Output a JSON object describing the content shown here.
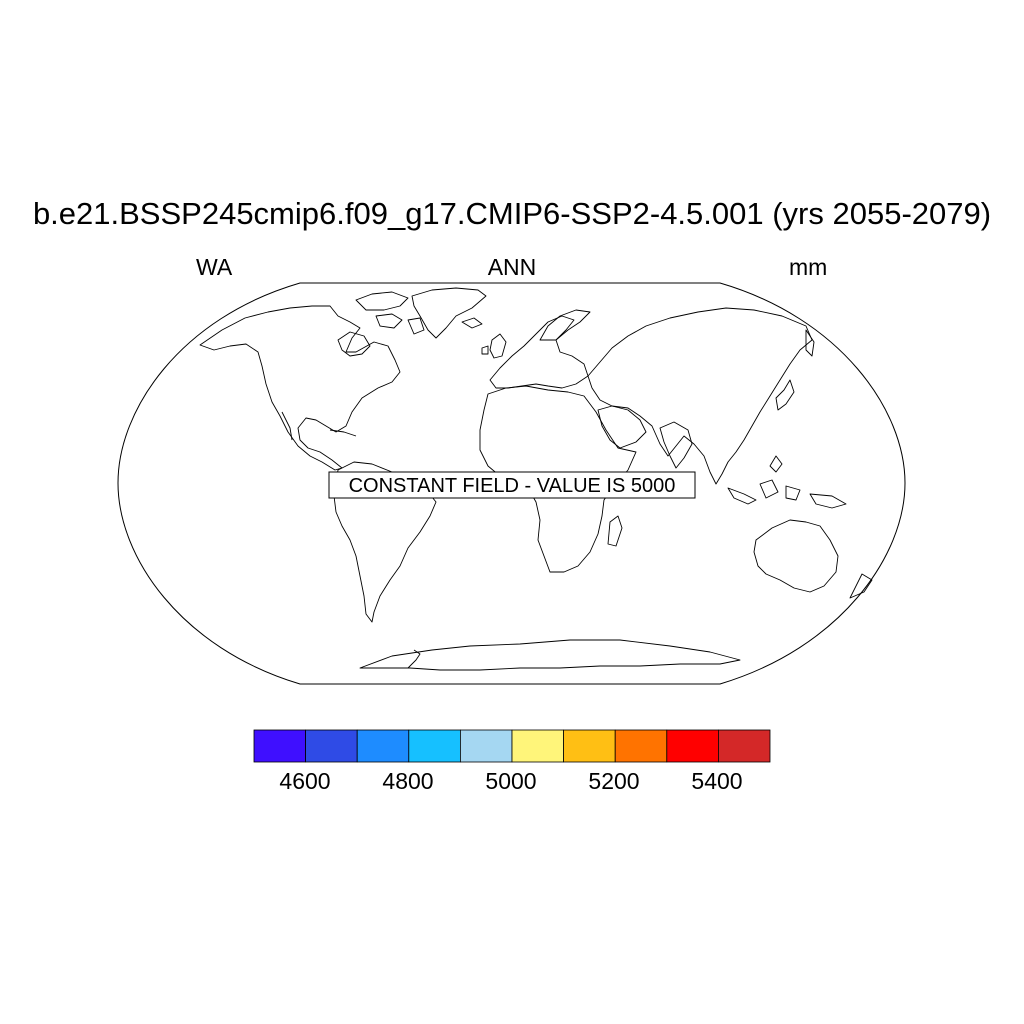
{
  "title": "b.e21.BSSP245cmip6.f09_g17.CMIP6-SSP2-4.5.001 (yrs 2055-2079)",
  "subtitle_left": "WA",
  "subtitle_center": "ANN",
  "subtitle_right": "mm",
  "annotation": "CONSTANT FIELD - VALUE IS 5000",
  "map": {
    "projection": "Robinson",
    "coastline_color": "#000000"
  },
  "colorbar": {
    "colors": [
      "#3f0fff",
      "#2f4be6",
      "#1e8cff",
      "#16c0ff",
      "#a5d7f2",
      "#fff57a",
      "#ffbf14",
      "#ff7300",
      "#ff0000",
      "#d42828"
    ],
    "labels": [
      "4600",
      "4800",
      "5000",
      "5200",
      "5400"
    ]
  }
}
